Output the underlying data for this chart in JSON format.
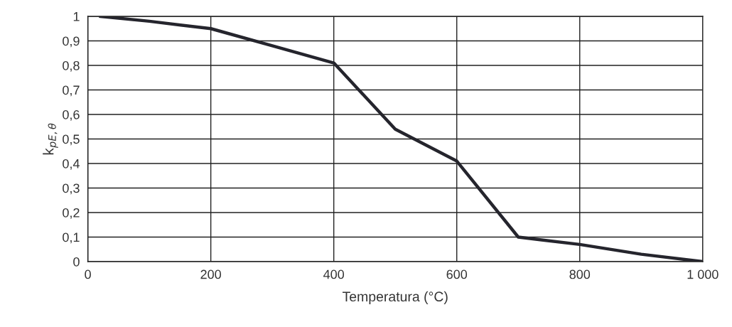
{
  "chart_data": {
    "type": "line",
    "xlabel": "Temperatura (°C)",
    "ylabel": "k$_{pE,θ}$",
    "x": [
      20,
      100,
      200,
      300,
      400,
      500,
      600,
      700,
      800,
      900,
      1000
    ],
    "series": [
      {
        "color": "#25252d",
        "values": [
          1.0,
          0.98,
          0.95,
          0.88,
          0.81,
          0.54,
          0.41,
          0.1,
          0.07,
          0.03,
          0.0
        ]
      }
    ],
    "xlim": [
      0,
      1000
    ],
    "ylim": [
      0,
      1
    ],
    "xticks": [
      0,
      200,
      400,
      600,
      800,
      {
        "value": 1000,
        "label": "1 000"
      }
    ],
    "yticks": [
      0,
      {
        "value": 0.1,
        "label": "0,1"
      },
      {
        "value": 0.2,
        "label": "0,2"
      },
      {
        "value": 0.3,
        "label": "0,3"
      },
      {
        "value": 0.4,
        "label": "0,4"
      },
      {
        "value": 0.5,
        "label": "0,5"
      },
      {
        "value": 0.6,
        "label": "0,6"
      },
      {
        "value": 0.7,
        "label": "0,7"
      },
      {
        "value": 0.8,
        "label": "0,8"
      },
      {
        "value": 0.9,
        "label": "0,9"
      },
      1
    ],
    "grid": true,
    "marker": "none",
    "line_style": "solid"
  }
}
